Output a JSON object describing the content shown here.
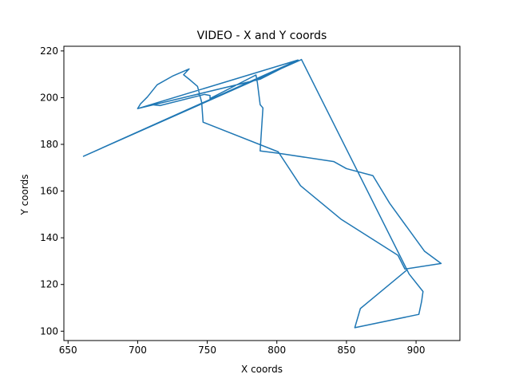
{
  "chart_data": {
    "type": "line",
    "title": "VIDEO - X and Y coords",
    "xlabel": "X coords",
    "ylabel": "Y coords",
    "xlim": [
      647.0,
      931.5
    ],
    "ylim": [
      96.0,
      222.0
    ],
    "xticks": [
      650,
      700,
      750,
      800,
      850,
      900
    ],
    "yticks": [
      100,
      120,
      140,
      160,
      180,
      200,
      220
    ],
    "grid": false,
    "series": [
      {
        "color": "#1f77b4",
        "points": [
          [
            817.7,
            216.3
          ],
          [
            661.1,
            174.9
          ],
          [
            815.2,
            216.1
          ],
          [
            700.0,
            195.3
          ],
          [
            710.0,
            197.0
          ],
          [
            716.0,
            196.6
          ],
          [
            748.0,
            201.4
          ],
          [
            752.0,
            200.9
          ],
          [
            752.0,
            199.6
          ],
          [
            785.0,
            209.7
          ],
          [
            786.0,
            206.5
          ],
          [
            788.0,
            197.0
          ],
          [
            790.0,
            195.6
          ],
          [
            788.0,
            177.2
          ],
          [
            801.0,
            176.2
          ],
          [
            841.0,
            172.6
          ],
          [
            850.0,
            169.6
          ],
          [
            869.0,
            166.6
          ],
          [
            881.0,
            154.8
          ],
          [
            906.0,
            134.3
          ],
          [
            918.0,
            129.0
          ],
          [
            892.0,
            126.6
          ],
          [
            887.0,
            132.5
          ],
          [
            846.0,
            148.0
          ],
          [
            817.0,
            162.3
          ],
          [
            801.0,
            176.8
          ],
          [
            747.0,
            189.5
          ],
          [
            746.0,
            198.0
          ],
          [
            743.0,
            204.8
          ],
          [
            738.0,
            207.4
          ],
          [
            733.0,
            209.8
          ],
          [
            737.0,
            212.3
          ],
          [
            725.0,
            209.2
          ],
          [
            714.0,
            205.5
          ],
          [
            707.0,
            200.3
          ],
          [
            702.0,
            197.3
          ],
          [
            700.0,
            195.3
          ],
          [
            788.0,
            207.9
          ],
          [
            815.2,
            216.1
          ],
          [
            661.1,
            174.9
          ],
          [
            817.7,
            216.3
          ],
          [
            895.0,
            124.5
          ],
          [
            905.0,
            117.0
          ],
          [
            904.0,
            112.8
          ],
          [
            902.0,
            107.2
          ],
          [
            856.0,
            101.5
          ],
          [
            860.0,
            109.7
          ],
          [
            893.0,
            126.0
          ]
        ]
      }
    ]
  }
}
